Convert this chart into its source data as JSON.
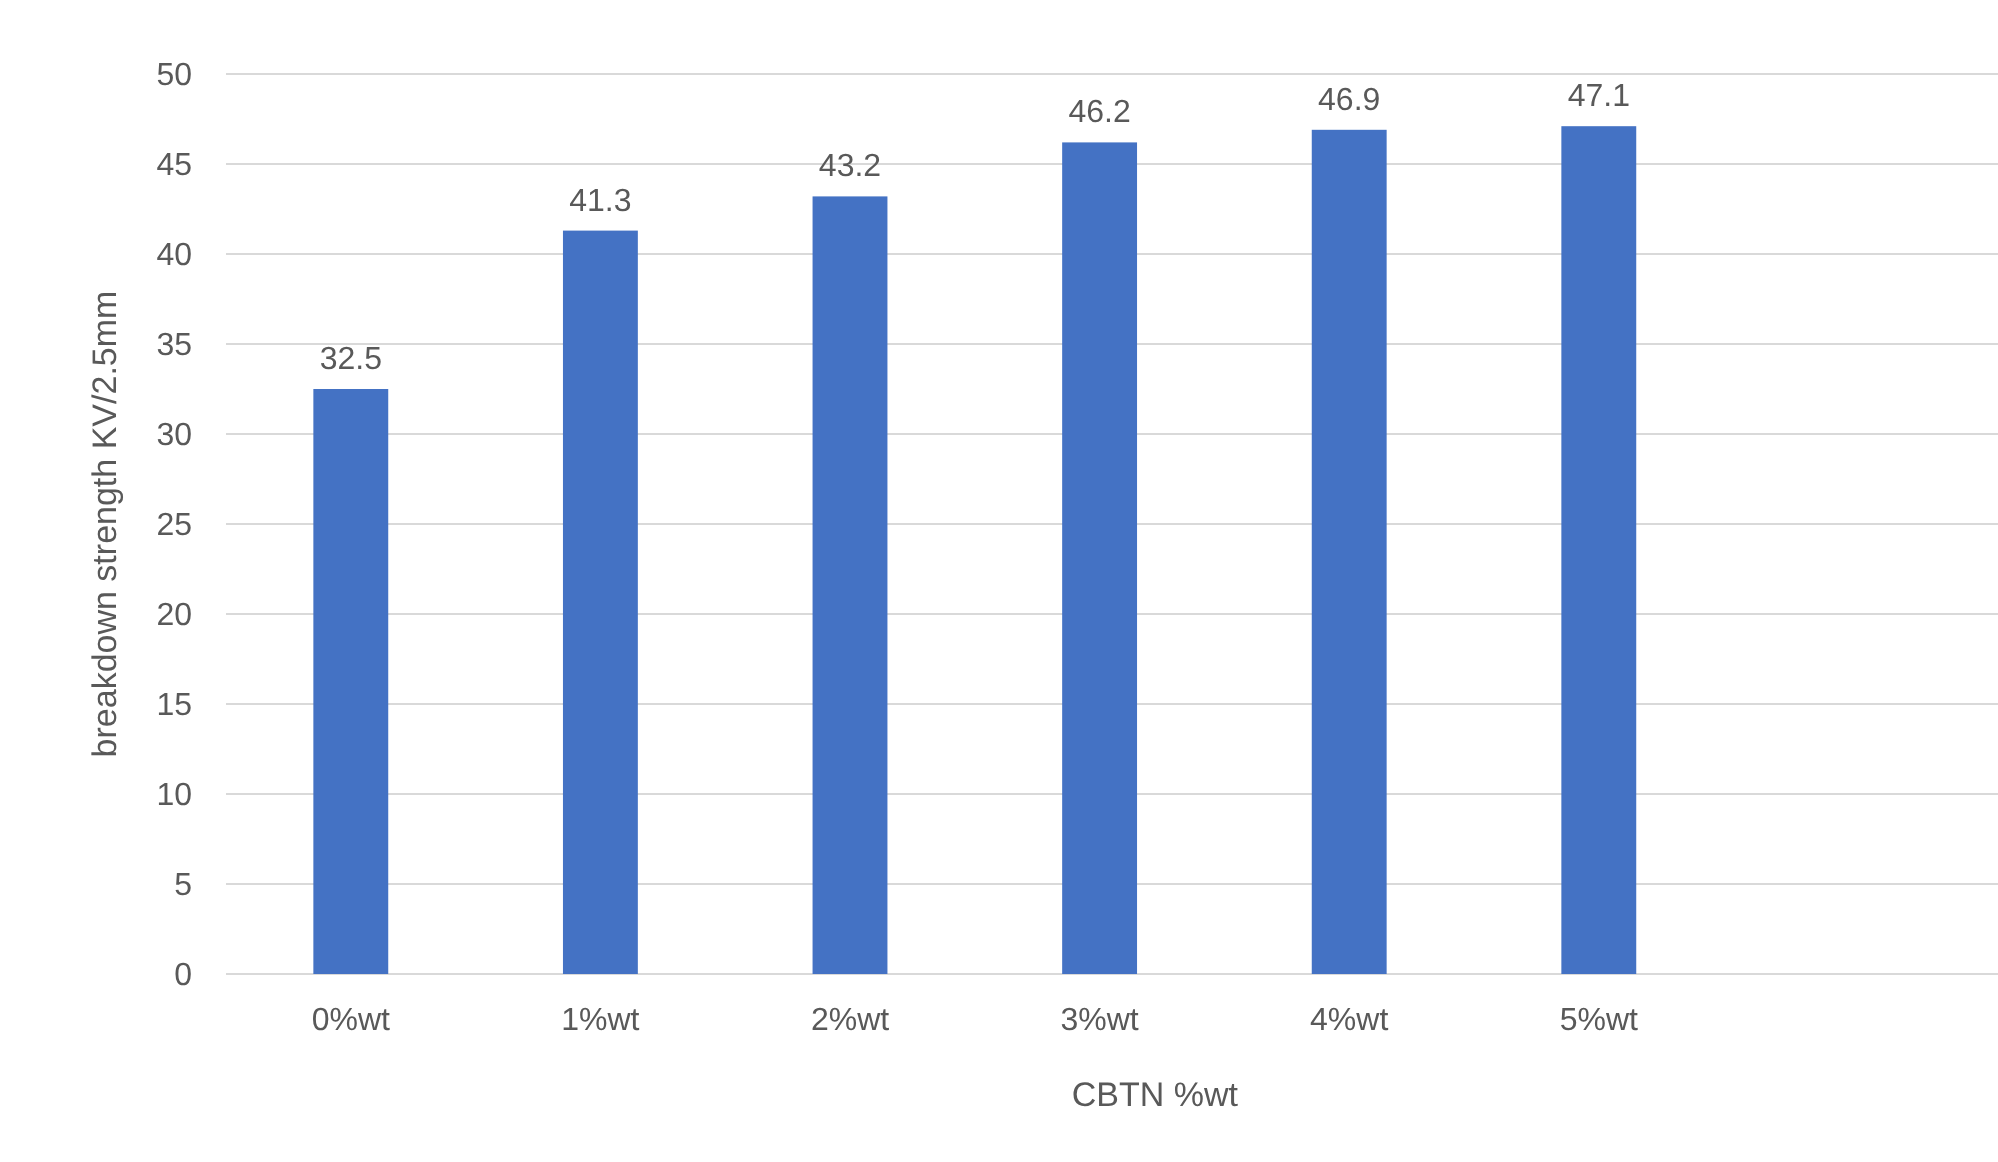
{
  "chart_data": {
    "type": "bar",
    "xlabel": "CBTN %wt",
    "ylabel": "breakdown strength KV/2.5mm",
    "categories": [
      "0%wt",
      "1%wt",
      "2%wt",
      "3%wt",
      "4%wt",
      "5%wt"
    ],
    "values": [
      32.5,
      41.3,
      43.2,
      46.2,
      46.9,
      47.1
    ],
    "color": "#4472c4",
    "ylim": [
      0,
      50
    ],
    "yticks": [
      0,
      5,
      10,
      15,
      20,
      25,
      30,
      35,
      40,
      45,
      50
    ],
    "grid": "y",
    "data_labels": true
  }
}
